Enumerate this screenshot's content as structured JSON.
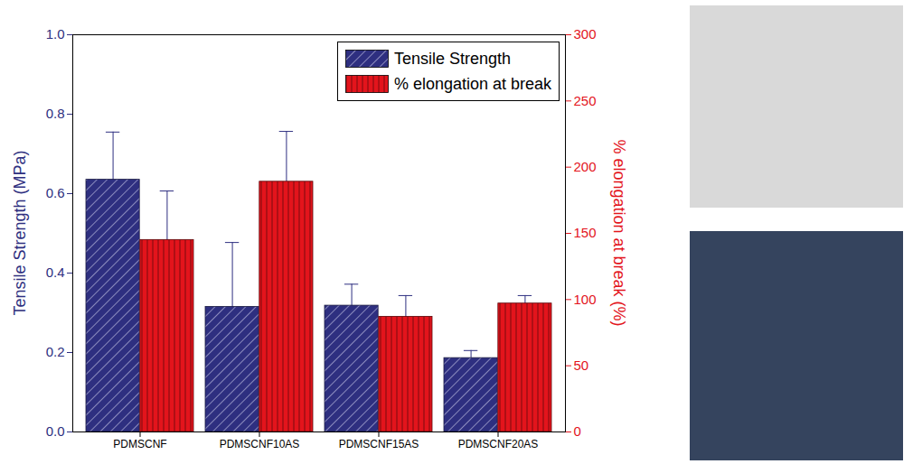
{
  "chart_data": {
    "type": "bar",
    "categories": [
      "PDMSCNF",
      "PDMSCNF10AS",
      "PDMSCNF15AS",
      "PDMSCNF20AS"
    ],
    "ylabel": "Tensile Strength (MPa)",
    "y2label": "% elongation at break (%)",
    "ylim": [
      0,
      1.0
    ],
    "yticks": [
      {
        "value": 0,
        "label": "0.0"
      },
      0.2,
      0.4,
      0.6,
      0.8,
      {
        "value": 1.0,
        "label": "1.0"
      }
    ],
    "y2lim": [
      0,
      300
    ],
    "y2ticks": [
      0,
      50,
      100,
      150,
      200,
      250,
      300
    ],
    "legend": "top-right",
    "series": [
      {
        "name": "Tensile Strength",
        "color": "#2e2f80",
        "values": [
          0.635,
          0.315,
          0.318,
          0.186
        ],
        "errors": [
          0.12,
          0.162,
          0.054,
          0.019
        ]
      },
      {
        "name": "% elongation at break",
        "color": "#e3141c",
        "axis": "y2",
        "values": [
          145,
          189,
          87,
          97
        ],
        "errors": [
          37,
          38,
          16,
          6
        ]
      }
    ]
  }
}
